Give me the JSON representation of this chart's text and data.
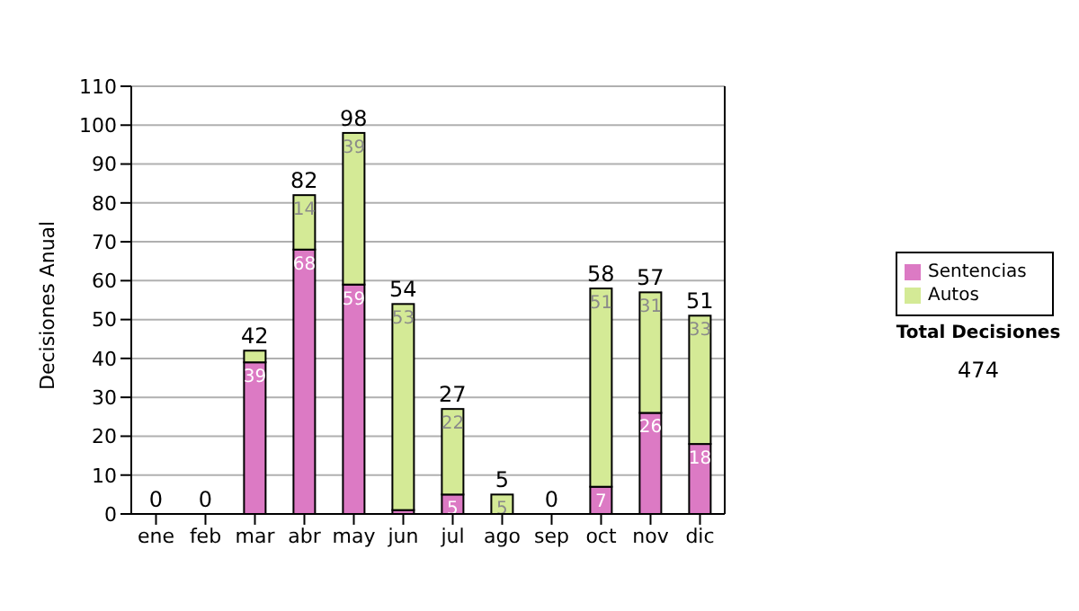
{
  "chart_data": {
    "type": "bar",
    "stacked": true,
    "ylabel": "Decisiones Anual",
    "categories": [
      "ene",
      "feb",
      "mar",
      "abr",
      "may",
      "jun",
      "jul",
      "ago",
      "sep",
      "oct",
      "nov",
      "dic"
    ],
    "series": [
      {
        "name": "Sentencias",
        "color": "#dc7ac4",
        "values": [
          0,
          0,
          39,
          68,
          59,
          1,
          5,
          0,
          0,
          7,
          26,
          18
        ],
        "value_labels": [
          null,
          null,
          "39",
          "68",
          "59",
          null,
          "5",
          null,
          null,
          "7",
          "26",
          "18"
        ]
      },
      {
        "name": "Autos",
        "color": "#d4ea96",
        "values": [
          0,
          0,
          3,
          14,
          39,
          53,
          22,
          5,
          0,
          51,
          31,
          33
        ],
        "value_labels": [
          null,
          null,
          null,
          "14",
          "39",
          "53",
          "22",
          "5",
          null,
          "51",
          "31",
          "33"
        ]
      }
    ],
    "totals": [
      "0",
      "0",
      "42",
      "82",
      "98",
      "54",
      "27",
      "5",
      "0",
      "58",
      "57",
      "51"
    ],
    "ylim": [
      0,
      110
    ],
    "yticks": [
      0,
      10,
      20,
      30,
      40,
      50,
      60,
      70,
      80,
      90,
      100,
      110
    ],
    "grid": "y",
    "legend": "right",
    "annotations": [
      "Total Decisiones",
      "474"
    ]
  }
}
